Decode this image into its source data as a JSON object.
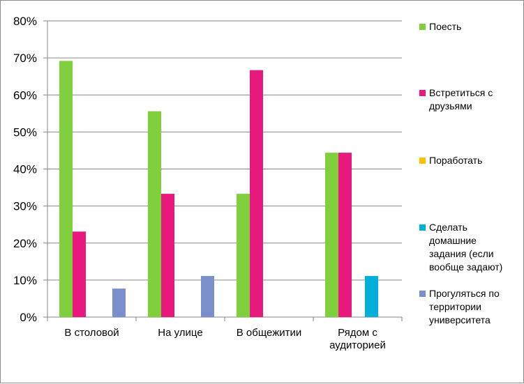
{
  "chart_data": {
    "type": "bar",
    "title": "",
    "xlabel": "",
    "ylabel": "",
    "categories": [
      [
        "В столовой"
      ],
      [
        "На улице"
      ],
      [
        "В общежитии"
      ],
      [
        "Рядом с",
        "аудиторией"
      ]
    ],
    "ylim": [
      0,
      0.8
    ],
    "yticks": [
      0,
      0.1,
      0.2,
      0.3,
      0.4,
      0.5,
      0.6,
      0.7,
      0.8
    ],
    "ytick_labels": [
      "0%",
      "10%",
      "20%",
      "30%",
      "40%",
      "50%",
      "60%",
      "70%",
      "80%"
    ],
    "grid": true,
    "legend_position": "right",
    "series": [
      {
        "name": [
          "Поесть"
        ],
        "color": "#80cf3d",
        "values": [
          0.692,
          0.556,
          0.333,
          0.444
        ]
      },
      {
        "name": [
          "Встретиться с",
          "друзьями"
        ],
        "color": "#e8197c",
        "values": [
          0.231,
          0.333,
          0.667,
          0.444
        ]
      },
      {
        "name": [
          "Поработать"
        ],
        "color": "#ffc000",
        "values": [
          0,
          0,
          0,
          0
        ]
      },
      {
        "name": [
          "Сделать",
          "домашние",
          "задания (если",
          "вообще задают)"
        ],
        "color": "#00b0d8",
        "values": [
          0,
          0,
          0,
          0.111
        ]
      },
      {
        "name": [
          "Прогуляться по",
          "территории",
          "университета"
        ],
        "color": "#7b8fcc",
        "values": [
          0.077,
          0.111,
          0,
          0
        ]
      }
    ]
  }
}
